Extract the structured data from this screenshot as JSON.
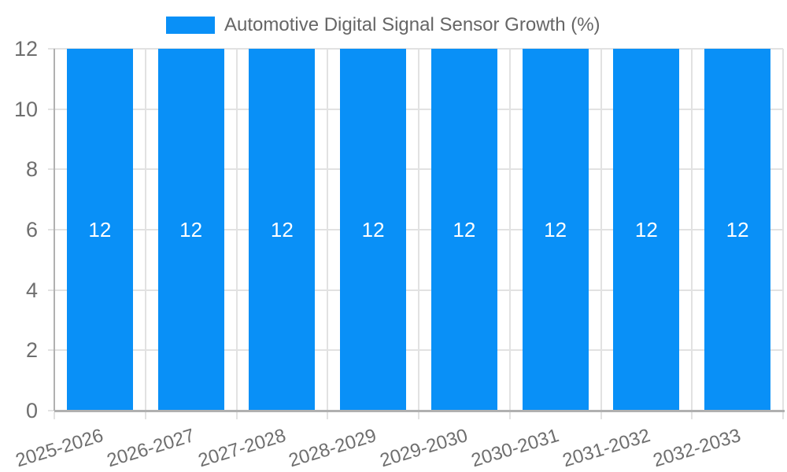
{
  "chart_data": {
    "type": "bar",
    "title": "Automotive Digital Signal Sensor Growth (%)",
    "categories": [
      "2025-2026",
      "2026-2027",
      "2027-2028",
      "2028-2029",
      "2029-2030",
      "2030-2031",
      "2031-2032",
      "2032-2033"
    ],
    "series": [
      {
        "name": "Automotive Digital Signal Sensor Growth (%)",
        "values": [
          12,
          12,
          12,
          12,
          12,
          12,
          12,
          12
        ],
        "color": "#0990f7"
      }
    ],
    "xlabel": "",
    "ylabel": "",
    "ylim": [
      0,
      12
    ],
    "yticks": [
      0,
      2,
      4,
      6,
      8,
      10,
      12
    ],
    "grid": true,
    "legend_position": "top-center",
    "tick_label_rotation_deg": -17,
    "value_labels": {
      "show": true,
      "color": "#ffffff"
    },
    "colors": {
      "bar": "#0990f7",
      "grid": "#e2e2e2",
      "axis": "#b0b0b0",
      "tick_text": "#6e6e6e",
      "legend_text": "#666666",
      "value_text": "#ffffff",
      "background": "#ffffff"
    }
  }
}
